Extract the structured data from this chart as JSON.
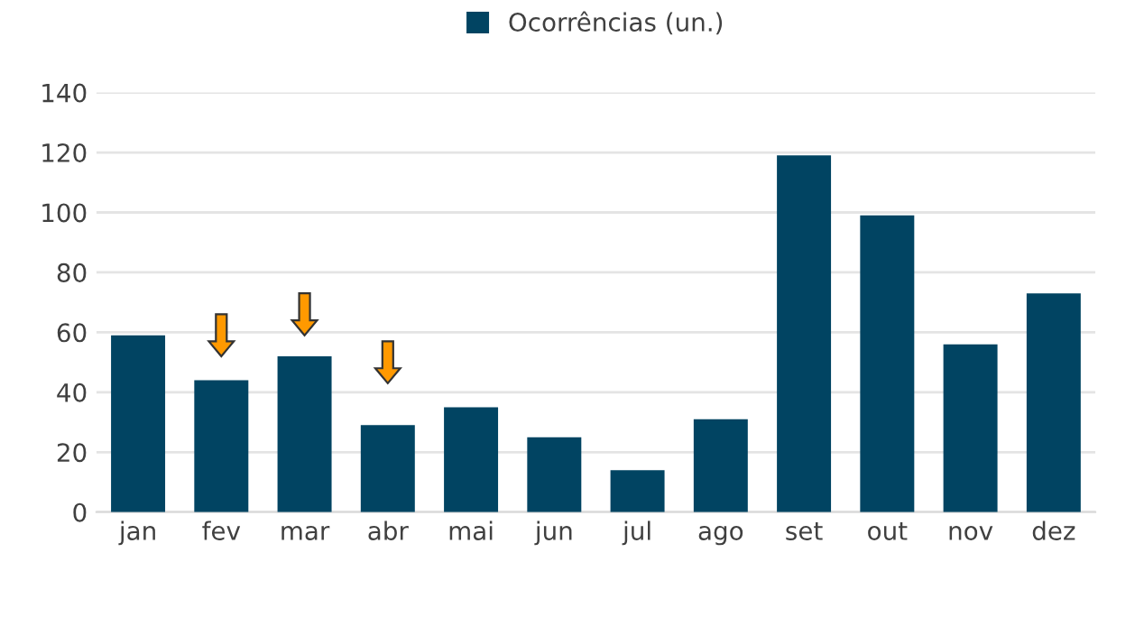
{
  "chart_data": {
    "type": "bar",
    "categories": [
      "jan",
      "fev",
      "mar",
      "abr",
      "mai",
      "jun",
      "jul",
      "ago",
      "set",
      "out",
      "nov",
      "dez"
    ],
    "series": [
      {
        "name": "Ocorrências (un.)",
        "color": "#014462",
        "values": [
          59,
          44,
          52,
          29,
          35,
          25,
          14,
          31,
          119,
          99,
          56,
          73
        ]
      }
    ],
    "ylim": [
      0,
      140
    ],
    "yticks": [
      0,
      20,
      40,
      60,
      80,
      100,
      120,
      140
    ],
    "grid": "y",
    "legend": "top"
  }
}
